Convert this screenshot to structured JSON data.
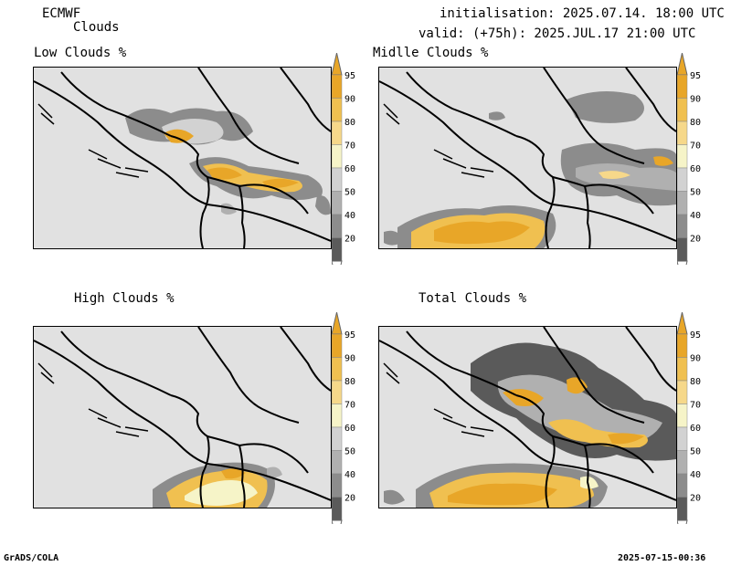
{
  "header": {
    "model": "ECMWF",
    "variable": "Clouds",
    "init": "initialisation: 2025.07.14. 18:00 UTC",
    "valid": "valid: (+75h): 2025.JUL.17 21:00 UTC"
  },
  "panels": [
    {
      "title": "Low Clouds %"
    },
    {
      "title": "Midlle Clouds %"
    },
    {
      "title": "High Clouds %"
    },
    {
      "title": "Total Clouds %"
    }
  ],
  "colorbar": {
    "levels": [
      "95",
      "90",
      "80",
      "70",
      "60",
      "50",
      "40",
      "20"
    ],
    "colors": {
      "c95": "#e8a628",
      "c90": "#f0c050",
      "c80": "#f6d88a",
      "c70": "#f6f4c8",
      "c60": "#d2d2d2",
      "c50": "#b0b0b0",
      "c40": "#8c8c8c",
      "c20": "#5a5a5a",
      "top": "#e8a628",
      "bottom": "#ffffff"
    }
  },
  "footer": {
    "left": "GrADS/COLA",
    "right": "2025-07-15-00:36"
  }
}
